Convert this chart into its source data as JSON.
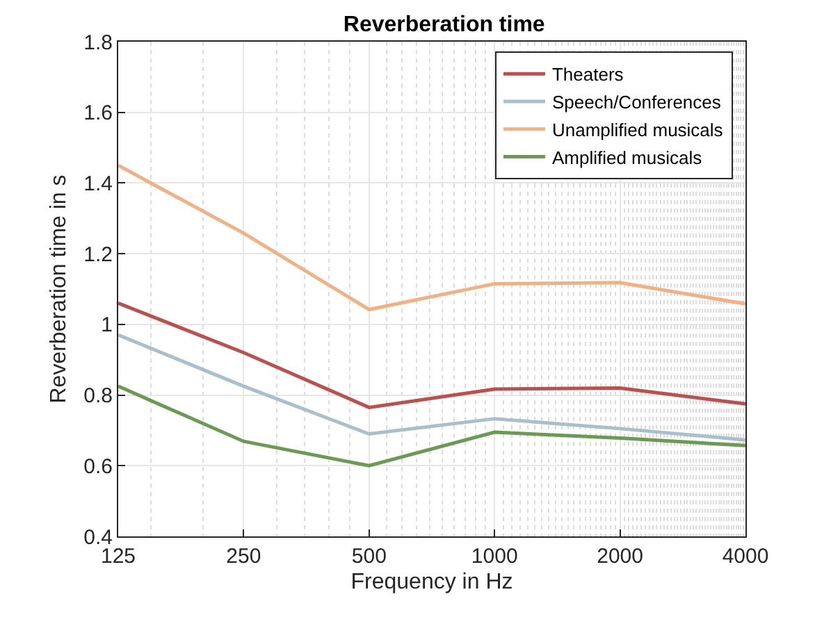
{
  "chart_data": {
    "type": "line",
    "title": "Reverberation time",
    "xlabel": "Frequency in Hz",
    "ylabel": "Reverberation time in s",
    "x": [
      125,
      250,
      500,
      1000,
      2000,
      4000
    ],
    "series": [
      {
        "name": "Theaters",
        "color": "#bd4f4c",
        "values": [
          1.06,
          0.92,
          0.765,
          0.817,
          0.82,
          0.775
        ]
      },
      {
        "name": "Speech/Conferences",
        "color": "#a9bfcb",
        "values": [
          0.97,
          0.825,
          0.69,
          0.733,
          0.705,
          0.673
        ]
      },
      {
        "name": "Unamplified musicals",
        "color": "#f2b182",
        "values": [
          1.45,
          1.258,
          1.042,
          1.115,
          1.118,
          1.058
        ]
      },
      {
        "name": "Amplified musicals",
        "color": "#6b9a52",
        "values": [
          0.825,
          0.669,
          0.6,
          0.695,
          0.678,
          0.657
        ]
      }
    ],
    "log": "x",
    "xlim": [
      125,
      4000
    ],
    "xticks": [
      125,
      250,
      500,
      1000,
      2000,
      4000
    ],
    "ylim": [
      0.4,
      1.8
    ],
    "yticks": [
      0.4,
      0.6,
      0.8,
      1,
      1.2,
      1.4,
      1.6,
      1.8
    ],
    "grid": true,
    "legend": "top right",
    "line_style": "solid",
    "marker": "none"
  }
}
